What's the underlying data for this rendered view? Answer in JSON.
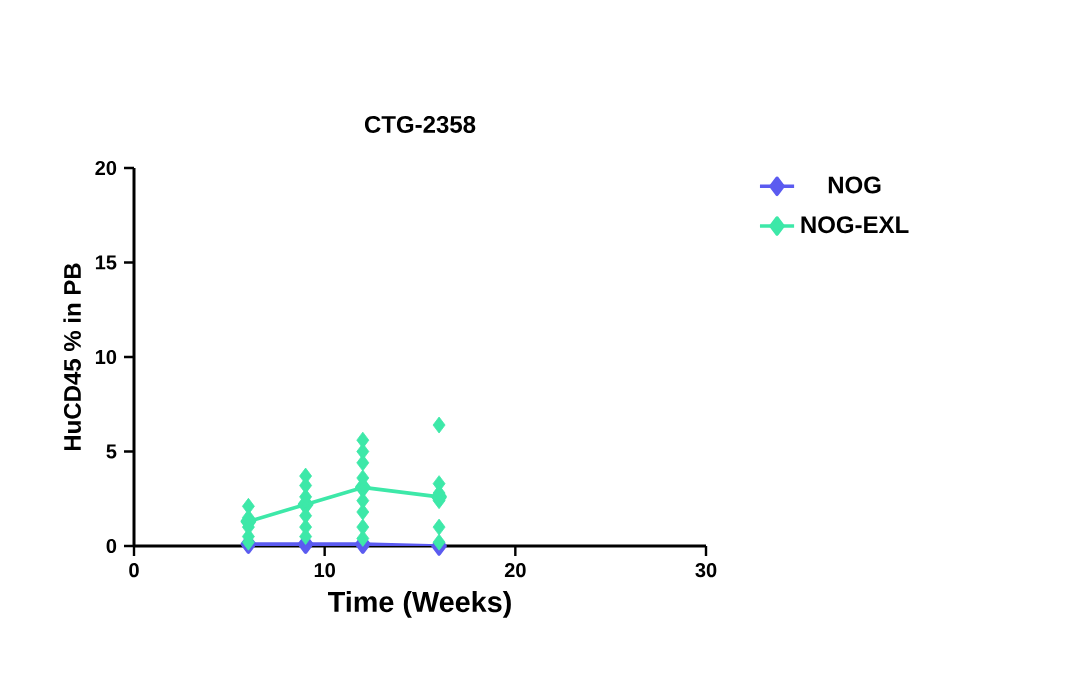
{
  "chart_data": {
    "type": "line",
    "title": "CTG-2358",
    "xlabel": "Time (Weeks)",
    "ylabel": "HuCD45 % in PB",
    "xlim": [
      0,
      30
    ],
    "xticks": [
      0,
      10,
      20,
      30
    ],
    "ylim": [
      0,
      20
    ],
    "yticks": [
      0,
      5,
      10,
      15,
      20
    ],
    "grid": false,
    "legend": "top right",
    "marker": "diamond",
    "line_style": "solid",
    "series": [
      {
        "name": "NOG",
        "color": "#5b5bf0",
        "x": [
          6,
          9,
          12,
          16
        ],
        "values": [
          0.1,
          0.1,
          0.1,
          0.0
        ]
      },
      {
        "name": "NOG-EXL",
        "color": "#3de8a8",
        "x": [
          6,
          9,
          12,
          16
        ],
        "values": [
          1.3,
          2.2,
          3.1,
          2.6
        ]
      },
      {
        "type": "scatter",
        "color": "#3de8a8",
        "x": [
          6,
          6,
          6,
          6,
          6,
          9,
          9,
          9,
          9,
          9,
          9,
          12,
          12,
          12,
          12,
          12,
          12,
          12,
          12,
          16,
          16,
          16,
          16,
          16,
          16
        ],
        "values": [
          2.1,
          1.5,
          1.0,
          0.5,
          0.2,
          3.7,
          3.2,
          2.6,
          1.6,
          1.0,
          0.5,
          5.6,
          5.0,
          4.4,
          3.6,
          2.4,
          1.8,
          1.0,
          0.4,
          6.4,
          3.3,
          2.8,
          2.4,
          1.0,
          0.2
        ]
      }
    ]
  }
}
